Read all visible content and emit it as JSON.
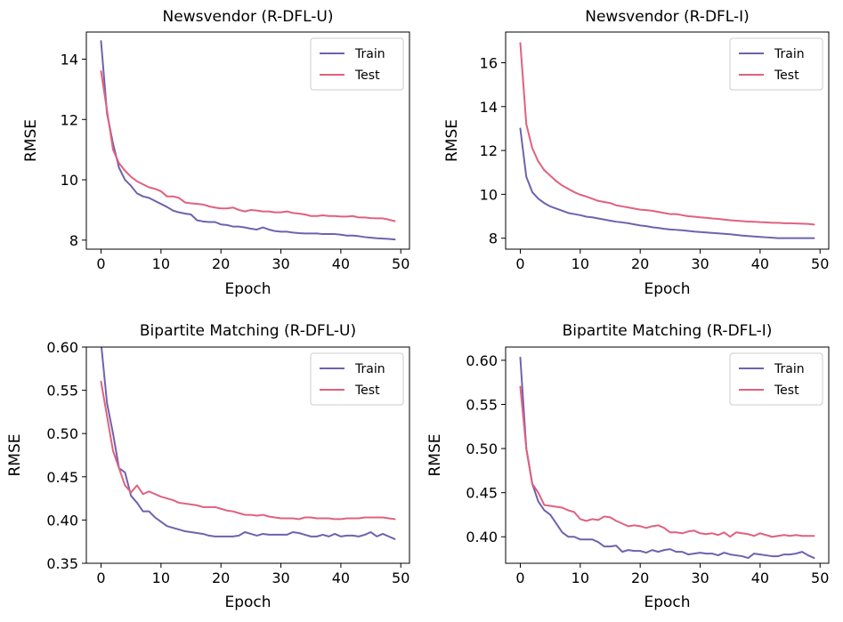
{
  "colors": {
    "train": "#6f62ae",
    "test": "#e0617e"
  },
  "chart_data": [
    {
      "type": "line",
      "title": "Newsvendor (R-DFL-U)",
      "xlabel": "Epoch",
      "ylabel": "RMSE",
      "xlim": [
        -2.45,
        51.45
      ],
      "ylim": [
        7.7,
        14.9
      ],
      "xticks": [
        0,
        10,
        20,
        30,
        40,
        50
      ],
      "yticks": [
        8,
        10,
        12,
        14
      ],
      "ytick_labels": [
        "8",
        "10",
        "12",
        "14"
      ],
      "legend_position": "upper right",
      "x": [
        0,
        1,
        2,
        3,
        4,
        5,
        6,
        7,
        8,
        9,
        10,
        11,
        12,
        13,
        14,
        15,
        16,
        17,
        18,
        19,
        20,
        21,
        22,
        23,
        24,
        25,
        26,
        27,
        28,
        29,
        30,
        31,
        32,
        33,
        34,
        35,
        36,
        37,
        38,
        39,
        40,
        41,
        42,
        43,
        44,
        45,
        46,
        47,
        48,
        49
      ],
      "series": [
        {
          "name": "Train",
          "values": [
            14.6,
            12.2,
            11.2,
            10.4,
            10.0,
            9.8,
            9.55,
            9.45,
            9.4,
            9.3,
            9.2,
            9.1,
            8.98,
            8.92,
            8.88,
            8.85,
            8.66,
            8.62,
            8.6,
            8.6,
            8.52,
            8.5,
            8.45,
            8.45,
            8.42,
            8.38,
            8.35,
            8.42,
            8.35,
            8.3,
            8.28,
            8.28,
            8.25,
            8.23,
            8.22,
            8.22,
            8.22,
            8.2,
            8.2,
            8.2,
            8.18,
            8.15,
            8.15,
            8.13,
            8.1,
            8.08,
            8.06,
            8.05,
            8.04,
            8.02
          ]
        },
        {
          "name": "Test",
          "values": [
            13.6,
            12.3,
            11.0,
            10.55,
            10.3,
            10.1,
            9.95,
            9.85,
            9.75,
            9.7,
            9.62,
            9.45,
            9.45,
            9.4,
            9.25,
            9.22,
            9.2,
            9.18,
            9.12,
            9.08,
            9.05,
            9.05,
            9.08,
            9.0,
            8.95,
            9.0,
            8.98,
            8.95,
            8.95,
            8.92,
            8.92,
            8.95,
            8.9,
            8.88,
            8.85,
            8.8,
            8.8,
            8.82,
            8.8,
            8.8,
            8.78,
            8.78,
            8.8,
            8.75,
            8.75,
            8.73,
            8.72,
            8.72,
            8.68,
            8.63
          ]
        }
      ]
    },
    {
      "type": "line",
      "title": "Newsvendor (R-DFL-I)",
      "xlabel": "Epoch",
      "ylabel": "RMSE",
      "xlim": [
        -2.45,
        51.45
      ],
      "ylim": [
        7.5,
        17.4
      ],
      "xticks": [
        0,
        10,
        20,
        30,
        40,
        50
      ],
      "yticks": [
        8,
        10,
        12,
        14,
        16
      ],
      "ytick_labels": [
        "8",
        "10",
        "12",
        "14",
        "16"
      ],
      "legend_position": "upper right",
      "x": [
        0,
        1,
        2,
        3,
        4,
        5,
        6,
        7,
        8,
        9,
        10,
        11,
        12,
        13,
        14,
        15,
        16,
        17,
        18,
        19,
        20,
        21,
        22,
        23,
        24,
        25,
        26,
        27,
        28,
        29,
        30,
        31,
        32,
        33,
        34,
        35,
        36,
        37,
        38,
        39,
        40,
        41,
        42,
        43,
        44,
        45,
        46,
        47,
        48,
        49
      ],
      "series": [
        {
          "name": "Train",
          "values": [
            13.0,
            10.8,
            10.1,
            9.8,
            9.6,
            9.45,
            9.35,
            9.25,
            9.15,
            9.1,
            9.05,
            8.98,
            8.95,
            8.9,
            8.85,
            8.8,
            8.75,
            8.72,
            8.68,
            8.63,
            8.58,
            8.55,
            8.5,
            8.47,
            8.43,
            8.4,
            8.38,
            8.36,
            8.33,
            8.3,
            8.28,
            8.26,
            8.24,
            8.22,
            8.2,
            8.18,
            8.15,
            8.12,
            8.1,
            8.08,
            8.06,
            8.04,
            8.02,
            8.0,
            8.0,
            8.0,
            8.0,
            8.0,
            8.0,
            8.0
          ]
        },
        {
          "name": "Test",
          "values": [
            16.9,
            13.2,
            12.1,
            11.5,
            11.1,
            10.85,
            10.6,
            10.4,
            10.25,
            10.1,
            9.98,
            9.9,
            9.8,
            9.7,
            9.65,
            9.6,
            9.5,
            9.45,
            9.4,
            9.35,
            9.3,
            9.28,
            9.25,
            9.2,
            9.15,
            9.1,
            9.1,
            9.05,
            9.0,
            8.98,
            8.95,
            8.93,
            8.9,
            8.88,
            8.85,
            8.82,
            8.8,
            8.78,
            8.76,
            8.75,
            8.73,
            8.72,
            8.7,
            8.7,
            8.68,
            8.68,
            8.67,
            8.66,
            8.65,
            8.62
          ]
        }
      ]
    },
    {
      "type": "line",
      "title": "Bipartite Matching (R-DFL-U)",
      "xlabel": "Epoch",
      "ylabel": "RMSE",
      "xlim": [
        -2.45,
        51.45
      ],
      "ylim": [
        0.35,
        0.6
      ],
      "xticks": [
        0,
        10,
        20,
        30,
        40,
        50
      ],
      "yticks": [
        0.35,
        0.4,
        0.45,
        0.5,
        0.55,
        0.6
      ],
      "ytick_labels": [
        "0.35",
        "0.40",
        "0.45",
        "0.50",
        "0.55",
        "0.60"
      ],
      "legend_position": "upper right",
      "x": [
        0,
        1,
        2,
        3,
        4,
        5,
        6,
        7,
        8,
        9,
        10,
        11,
        12,
        13,
        14,
        15,
        16,
        17,
        18,
        19,
        20,
        21,
        22,
        23,
        24,
        25,
        26,
        27,
        28,
        29,
        30,
        31,
        32,
        33,
        34,
        35,
        36,
        37,
        38,
        39,
        40,
        41,
        42,
        43,
        44,
        45,
        46,
        47,
        48,
        49
      ],
      "series": [
        {
          "name": "Train",
          "values": [
            0.605,
            0.535,
            0.5,
            0.46,
            0.455,
            0.428,
            0.42,
            0.41,
            0.41,
            0.403,
            0.398,
            0.393,
            0.391,
            0.389,
            0.387,
            0.386,
            0.385,
            0.384,
            0.382,
            0.381,
            0.381,
            0.381,
            0.381,
            0.382,
            0.386,
            0.384,
            0.382,
            0.384,
            0.383,
            0.383,
            0.383,
            0.383,
            0.386,
            0.385,
            0.383,
            0.381,
            0.381,
            0.383,
            0.381,
            0.384,
            0.381,
            0.382,
            0.382,
            0.381,
            0.383,
            0.386,
            0.381,
            0.384,
            0.381,
            0.378
          ]
        },
        {
          "name": "Test",
          "values": [
            0.56,
            0.52,
            0.48,
            0.46,
            0.44,
            0.432,
            0.44,
            0.43,
            0.433,
            0.43,
            0.427,
            0.425,
            0.423,
            0.42,
            0.419,
            0.418,
            0.417,
            0.415,
            0.415,
            0.415,
            0.413,
            0.411,
            0.41,
            0.408,
            0.406,
            0.406,
            0.405,
            0.406,
            0.404,
            0.403,
            0.402,
            0.402,
            0.402,
            0.401,
            0.403,
            0.403,
            0.402,
            0.402,
            0.402,
            0.401,
            0.401,
            0.402,
            0.402,
            0.402,
            0.403,
            0.403,
            0.403,
            0.403,
            0.402,
            0.401
          ]
        }
      ]
    },
    {
      "type": "line",
      "title": "Bipartite Matching (R-DFL-I)",
      "xlabel": "Epoch",
      "ylabel": "RMSE",
      "xlim": [
        -2.45,
        51.45
      ],
      "ylim": [
        0.37,
        0.615
      ],
      "xticks": [
        0,
        10,
        20,
        30,
        40,
        50
      ],
      "yticks": [
        0.4,
        0.45,
        0.5,
        0.55,
        0.6
      ],
      "ytick_labels": [
        "0.40",
        "0.45",
        "0.50",
        "0.55",
        "0.60"
      ],
      "legend_position": "upper right",
      "x": [
        0,
        1,
        2,
        3,
        4,
        5,
        6,
        7,
        8,
        9,
        10,
        11,
        12,
        13,
        14,
        15,
        16,
        17,
        18,
        19,
        20,
        21,
        22,
        23,
        24,
        25,
        26,
        27,
        28,
        29,
        30,
        31,
        32,
        33,
        34,
        35,
        36,
        37,
        38,
        39,
        40,
        41,
        42,
        43,
        44,
        45,
        46,
        47,
        48,
        49
      ],
      "series": [
        {
          "name": "Train",
          "values": [
            0.603,
            0.5,
            0.46,
            0.44,
            0.43,
            0.425,
            0.415,
            0.405,
            0.4,
            0.4,
            0.397,
            0.397,
            0.397,
            0.394,
            0.389,
            0.389,
            0.39,
            0.383,
            0.385,
            0.384,
            0.384,
            0.382,
            0.385,
            0.383,
            0.385,
            0.386,
            0.383,
            0.383,
            0.38,
            0.381,
            0.382,
            0.381,
            0.381,
            0.379,
            0.382,
            0.38,
            0.379,
            0.378,
            0.376,
            0.381,
            0.38,
            0.379,
            0.378,
            0.378,
            0.38,
            0.38,
            0.381,
            0.383,
            0.379,
            0.376
          ]
        },
        {
          "name": "Test",
          "values": [
            0.57,
            0.5,
            0.46,
            0.45,
            0.436,
            0.435,
            0.434,
            0.433,
            0.43,
            0.428,
            0.42,
            0.418,
            0.42,
            0.419,
            0.423,
            0.422,
            0.418,
            0.415,
            0.412,
            0.413,
            0.412,
            0.41,
            0.412,
            0.413,
            0.41,
            0.405,
            0.405,
            0.404,
            0.406,
            0.407,
            0.404,
            0.403,
            0.404,
            0.402,
            0.405,
            0.4,
            0.405,
            0.404,
            0.403,
            0.401,
            0.404,
            0.402,
            0.4,
            0.401,
            0.402,
            0.401,
            0.402,
            0.401,
            0.401,
            0.401
          ]
        }
      ]
    }
  ]
}
